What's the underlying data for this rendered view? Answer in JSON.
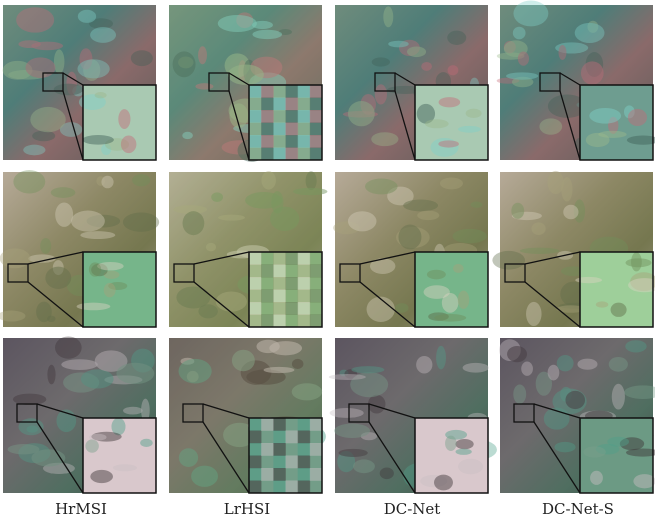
{
  "figure": {
    "column_labels": [
      "HrMSI",
      "LrHSI",
      "DC-Net",
      "DC-Net-S"
    ]
  }
}
